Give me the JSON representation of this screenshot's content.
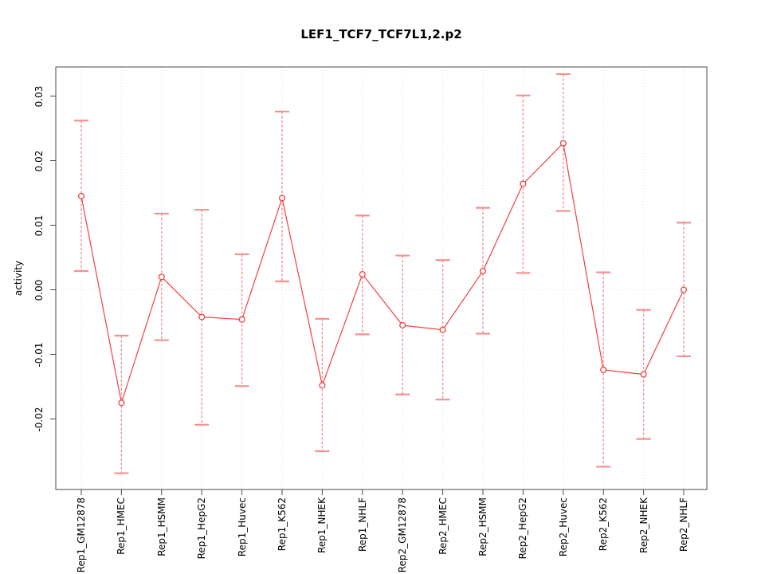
{
  "chart_data": {
    "type": "line",
    "title": "LEF1_TCF7_TCF7L1,2.p2",
    "ylabel": "activity",
    "xlabel": "",
    "legend": "none",
    "categories": [
      "Rep1_GM12878",
      "Rep1_HMEC",
      "Rep1_HSMM",
      "Rep1_HepG2",
      "Rep1_Huvec",
      "Rep1_K562",
      "Rep1_NHEK",
      "Rep1_NHLF",
      "Rep2_GM12878",
      "Rep2_HMEC",
      "Rep2_HSMM",
      "Rep2_HepG2",
      "Rep2_Huvec",
      "Rep2_K562",
      "Rep2_NHEK",
      "Rep2_NHLF"
    ],
    "series": [
      {
        "name": "activity",
        "marker": "open-circle",
        "values": [
          0.0145,
          -0.0175,
          0.002,
          -0.0042,
          -0.0046,
          0.0142,
          -0.0148,
          0.0024,
          -0.0055,
          -0.0062,
          0.0029,
          0.0164,
          0.0227,
          -0.0124,
          -0.0131,
          0.0
        ],
        "error_lower": [
          0.0029,
          -0.0284,
          -0.0078,
          -0.0209,
          -0.0149,
          0.0013,
          -0.025,
          -0.0069,
          -0.0162,
          -0.017,
          -0.0068,
          0.0026,
          0.0122,
          -0.0274,
          -0.0231,
          -0.0103
        ],
        "error_upper": [
          0.0262,
          -0.0071,
          0.0118,
          0.0124,
          0.0055,
          0.0276,
          -0.0045,
          0.0115,
          0.0053,
          0.0046,
          0.0127,
          0.0301,
          0.0334,
          0.0027,
          -0.0031,
          0.0104
        ]
      }
    ],
    "ylim": [
      -0.0309,
      0.0345
    ],
    "yticks": [
      -0.02,
      -0.01,
      0,
      0.01,
      0.02,
      0.03
    ],
    "ytick_labels": [
      "-0.02",
      "-0.01",
      "0.00",
      "0.01",
      "0.02",
      "0.03"
    ],
    "grid": {
      "vertical_per_category": true,
      "horizontal_zero_line": true,
      "style": "dotted"
    },
    "colors": {
      "point_line": "#f04040",
      "error_bar": "#f59090",
      "grid": "#dcdcdc",
      "box": "#4a4a4a",
      "text": "#000000",
      "background": "#ffffff"
    }
  }
}
